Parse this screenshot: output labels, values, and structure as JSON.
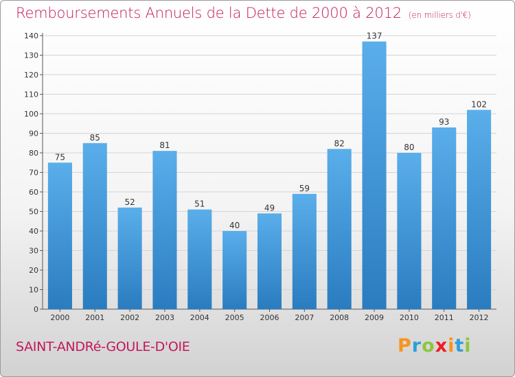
{
  "title": "Remboursements Annuels de la Dette de 2000 à 2012",
  "unit_label": "(en milliers d'€)",
  "commune": "SAINT-ANDRé-GOULE-D'OIE",
  "logo": {
    "p": "P",
    "r": "r",
    "o": "o",
    "x": "x",
    "i1": "i",
    "t": "t",
    "i2": "i"
  },
  "colors": {
    "title": "#c2185b",
    "bar_top": "#5aaeea",
    "bar_bottom": "#2a7cc0",
    "grid": "#d4d4d4"
  },
  "chart_data": {
    "type": "bar",
    "title": "Remboursements Annuels de la Dette de 2000 à 2012",
    "xlabel": "",
    "ylabel": "",
    "categories": [
      "2000",
      "2001",
      "2002",
      "2003",
      "2004",
      "2005",
      "2006",
      "2007",
      "2008",
      "2009",
      "2010",
      "2011",
      "2012"
    ],
    "values": [
      75,
      85,
      52,
      81,
      51,
      40,
      49,
      59,
      82,
      137,
      80,
      93,
      102
    ],
    "ylim": [
      0,
      140
    ],
    "yticks": [
      0,
      10,
      20,
      30,
      40,
      50,
      60,
      70,
      80,
      90,
      100,
      110,
      120,
      130,
      140
    ],
    "grid": true,
    "data_labels": true
  }
}
